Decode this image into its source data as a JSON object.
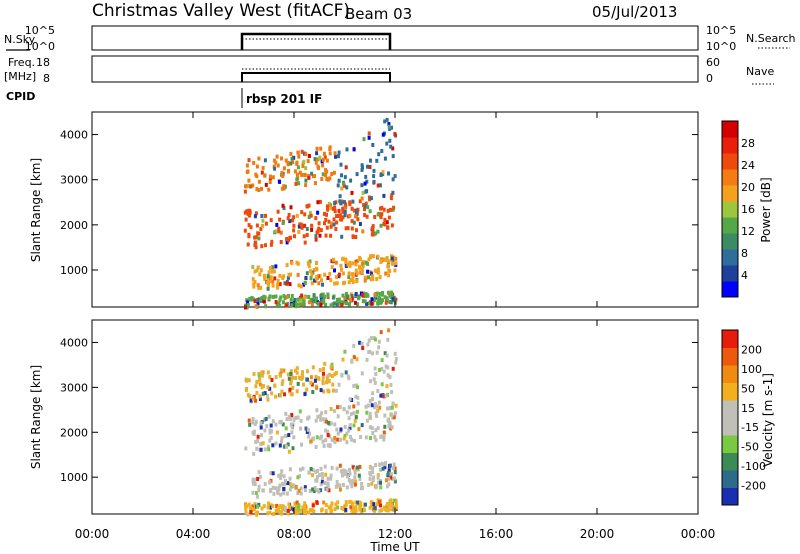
{
  "header": {
    "station": "Christmas Valley West (fitACF)",
    "beam": "Beam 03",
    "date": "05/Jul/2013"
  },
  "summary_panels": {
    "nsky": {
      "label": "N.Sky",
      "ticks": [
        "10^5",
        "10^0"
      ],
      "right_ticks": [
        "10^5",
        "10^0"
      ],
      "legend": "N.Search"
    },
    "freq": {
      "label_top": "Freq.",
      "label_bottom": "[MHz]",
      "ticks": [
        "18",
        "8"
      ],
      "right_ticks": [
        "60",
        "0"
      ],
      "legend": "Nave"
    },
    "cpid": {
      "label": "CPID",
      "value": "rbsp 201 IF"
    }
  },
  "chart_data": [
    {
      "type": "heatmap",
      "name": "power",
      "ylabel": "Slant Range [km]",
      "colorbar_label": "Power [dB]",
      "ylim": [
        180,
        4500
      ],
      "yticks": [
        1000,
        2000,
        3000,
        4000
      ],
      "colorbar": {
        "ticks": [
          "28",
          "24",
          "20",
          "16",
          "12",
          "8",
          "4"
        ],
        "colors": [
          "#0000ff",
          "#1f3f9c",
          "#2f6e9a",
          "#3d8b63",
          "#55a847",
          "#9ec63c",
          "#f4a21e",
          "#f57c14",
          "#ee4a0c",
          "#e8200a",
          "#d40000"
        ]
      },
      "bands": [
        {
          "t0": 6.0,
          "t1": 9.6,
          "r0": 2700,
          "r1": 3800,
          "color": "#f07a10"
        },
        {
          "t0": 6.0,
          "t1": 12.0,
          "r0": 1500,
          "r1": 2750,
          "color": "#ee4a0c"
        },
        {
          "t0": 6.3,
          "t1": 12.0,
          "r0": 600,
          "r1": 1400,
          "color": "#f4a21e"
        },
        {
          "t0": 9.5,
          "t1": 12.0,
          "r0": 2000,
          "r1": 4500,
          "color": "#2f6e9a"
        },
        {
          "t0": 6.0,
          "t1": 12.0,
          "r0": 200,
          "r1": 550,
          "color": "#55a847"
        }
      ]
    },
    {
      "type": "heatmap",
      "name": "velocity",
      "ylabel": "Slant Range [km]",
      "colorbar_label": "Velocity [m s-1]",
      "ylim": [
        180,
        4500
      ],
      "yticks": [
        1000,
        2000,
        3000,
        4000
      ],
      "colorbar": {
        "ticks": [
          "200",
          "100",
          "50",
          "15",
          "-15",
          "-50",
          "-100",
          "-200"
        ],
        "colors": [
          "#1a2fb0",
          "#2d6b8a",
          "#3c8a55",
          "#7ac943",
          "#c0c0b8",
          "#c0c0b8",
          "#f2b01e",
          "#f08a10",
          "#ee5a0c",
          "#e81c0a"
        ]
      },
      "bands": [
        {
          "t0": 6.0,
          "t1": 9.6,
          "r0": 2700,
          "r1": 3600,
          "color": "#e8b030"
        },
        {
          "t0": 6.0,
          "t1": 12.0,
          "r0": 1500,
          "r1": 2750,
          "color": "#c0c0b8"
        },
        {
          "t0": 6.3,
          "t1": 12.0,
          "r0": 600,
          "r1": 1400,
          "color": "#c0c0b8"
        },
        {
          "t0": 9.5,
          "t1": 12.0,
          "r0": 2200,
          "r1": 4500,
          "color": "#c0c0b8"
        },
        {
          "t0": 6.0,
          "t1": 12.0,
          "r0": 200,
          "r1": 550,
          "color": "#f2b01e"
        }
      ]
    }
  ],
  "x_axis": {
    "label": "Time UT",
    "ticks": [
      "00:00",
      "04:00",
      "08:00",
      "12:00",
      "16:00",
      "20:00",
      "00:00"
    ]
  }
}
